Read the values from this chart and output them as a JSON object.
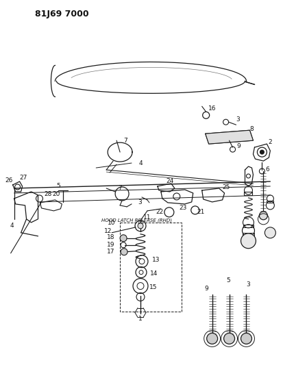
{
  "title": "81J69 7000",
  "background_color": "#ffffff",
  "figsize": [
    4.14,
    5.33
  ],
  "dpi": 100,
  "line_color": "#1a1a1a",
  "latch_label": "HOOD LATCH RELEASE (RHD)"
}
